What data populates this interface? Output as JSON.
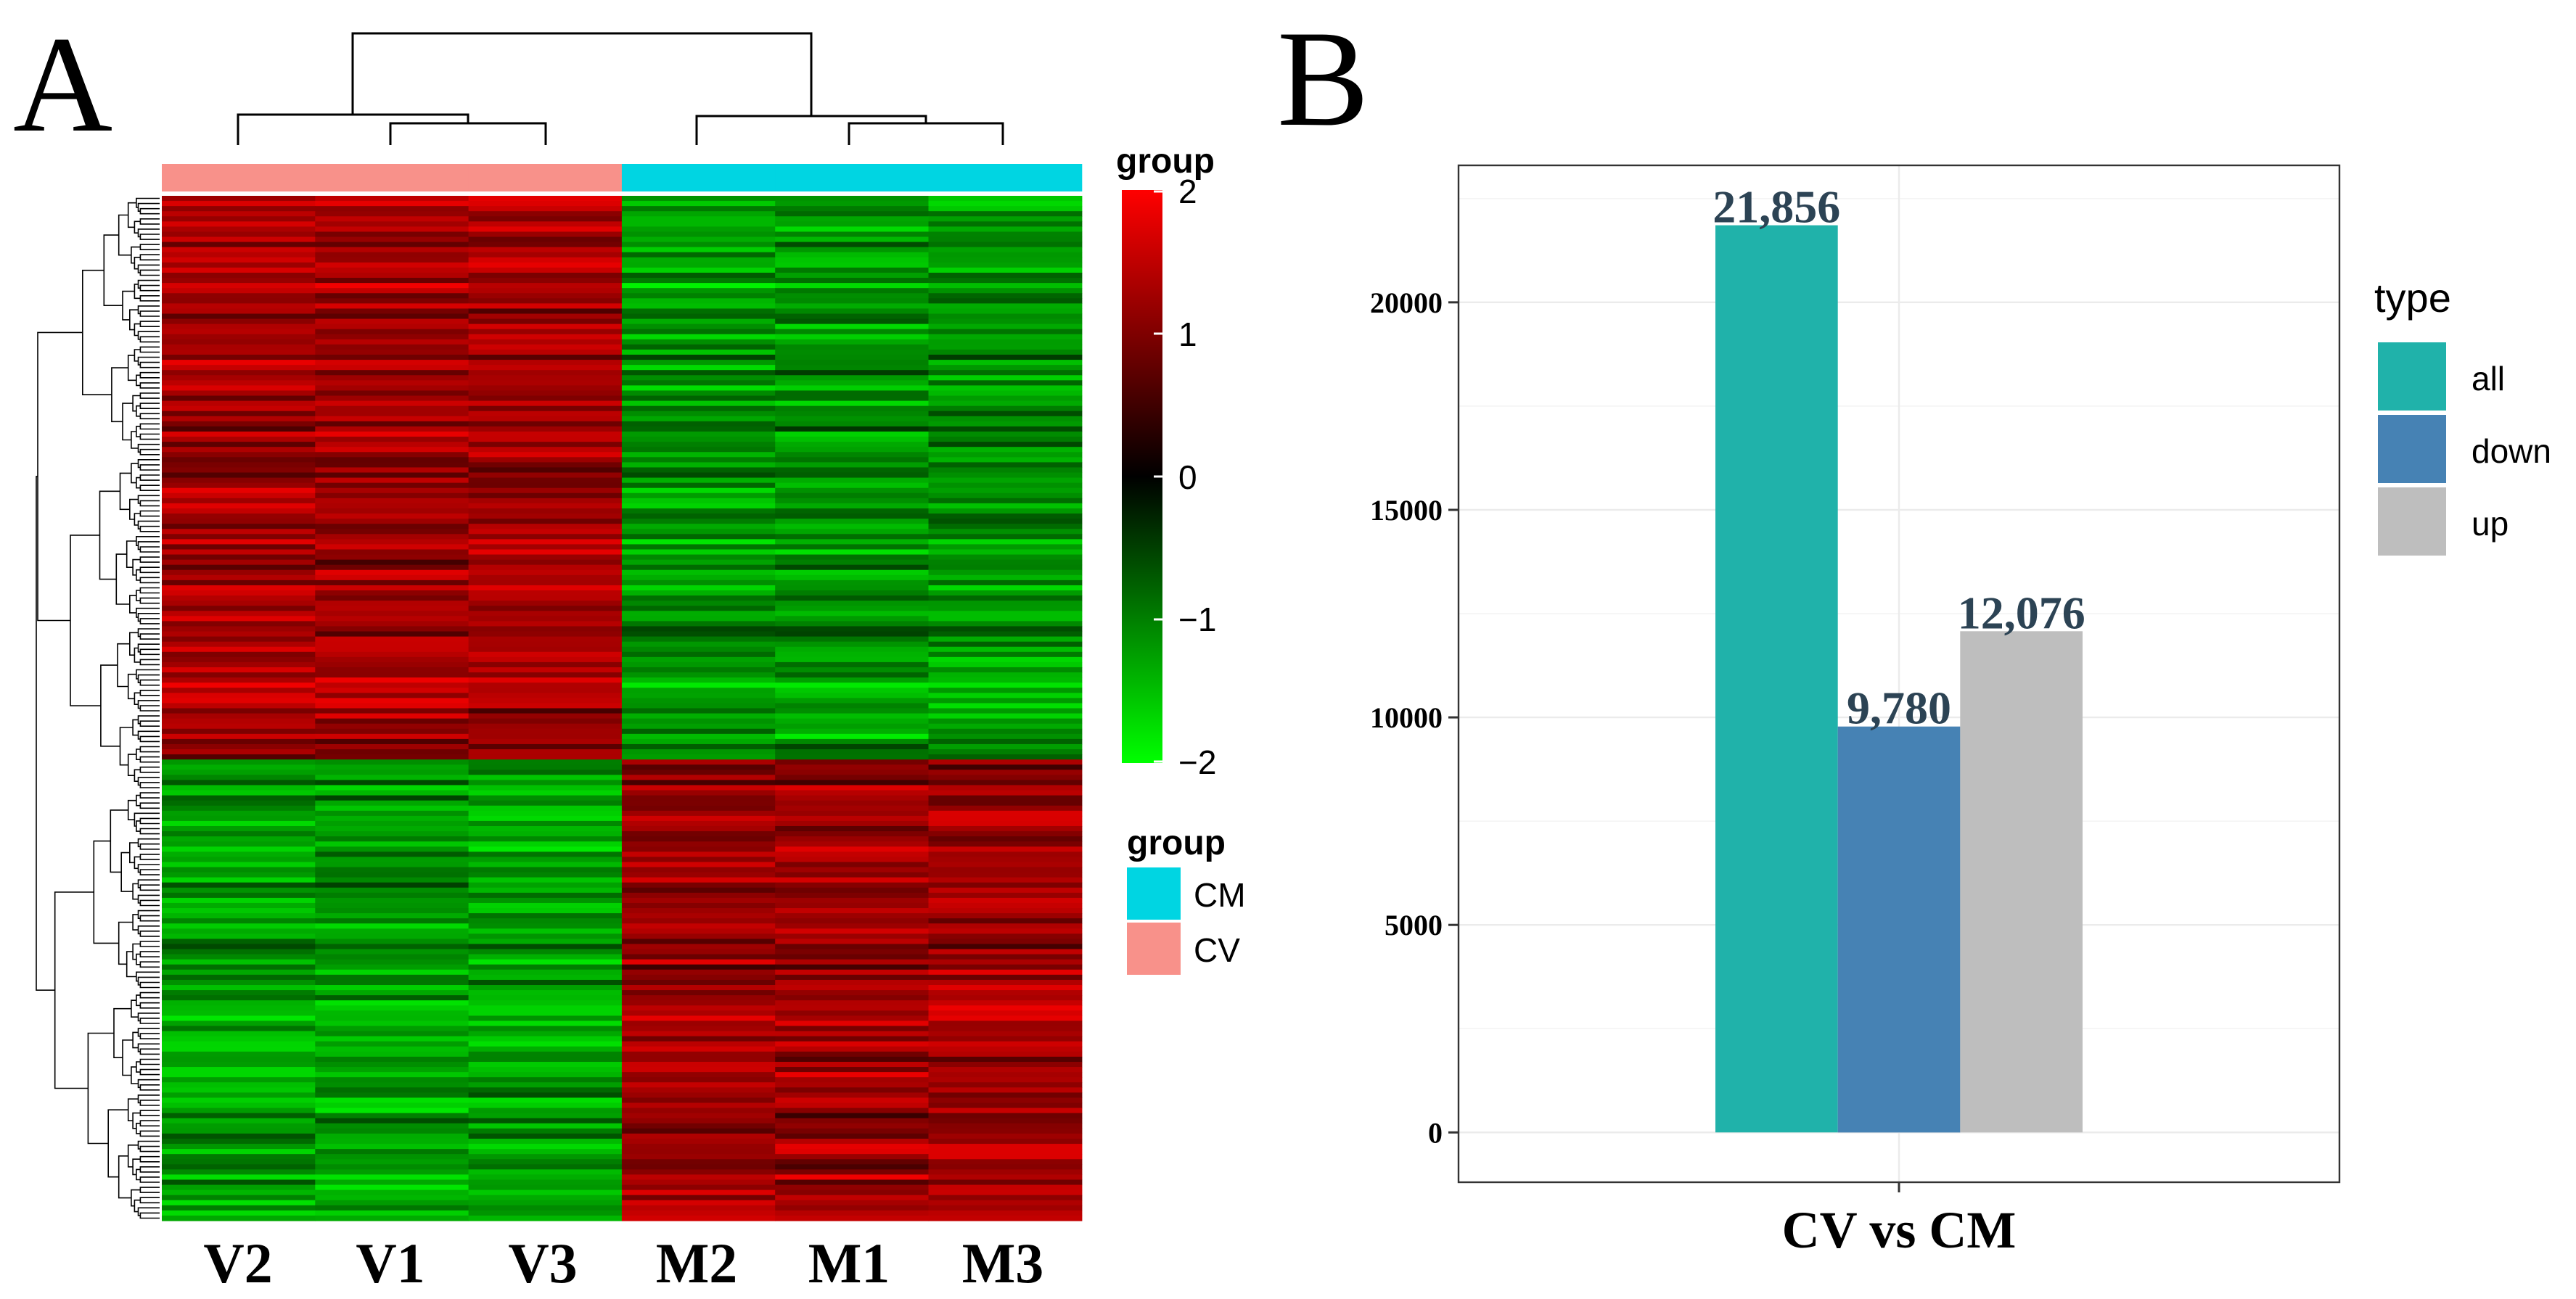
{
  "panels": {
    "a_letter": "A",
    "b_letter": "B"
  },
  "heatmap": {
    "type": "heatmap",
    "columns": [
      "V2",
      "V1",
      "V3",
      "M2",
      "M1",
      "M3"
    ],
    "column_groups": [
      "CV",
      "CV",
      "CV",
      "CM",
      "CM",
      "CM"
    ],
    "colorbar": {
      "title": "group",
      "ticks": [
        "2",
        "1",
        "0",
        "−1",
        "−2"
      ],
      "tick_values": [
        2,
        1,
        0,
        -1,
        -2
      ],
      "low_color": "#00ff00",
      "mid_color": "#000000",
      "high_color": "#ff0000"
    },
    "group_legend": {
      "title": "group",
      "items": [
        {
          "label": "CM",
          "color": "#00d5e2"
        },
        {
          "label": "CV",
          "color": "#f8918a"
        }
      ]
    },
    "row_blocks_description_values": {
      "upper_cluster_fraction": 0.55,
      "CV_upper_mean": 1.2,
      "CM_upper_mean": -1.1,
      "CV_lower_mean": -1.1,
      "CM_lower_mean": 1.1
    }
  },
  "chart_data": {
    "type": "bar",
    "categories": [
      "CV vs CM"
    ],
    "series": [
      {
        "name": "all",
        "values": [
          21856
        ],
        "label": "21,856",
        "color": "#20b2aa"
      },
      {
        "name": "down",
        "values": [
          9780
        ],
        "label": "9,780",
        "color": "#4682b4"
      },
      {
        "name": "up",
        "values": [
          12076
        ],
        "label": "12,076",
        "color": "#bebebe"
      }
    ],
    "ylim": [
      -1200,
      23300
    ],
    "yticks": [
      0,
      5000,
      10000,
      15000,
      20000
    ],
    "ytick_labels": [
      "0",
      "5000",
      "10000",
      "15000",
      "20000"
    ],
    "xlabel": "CV vs CM",
    "legend": {
      "title": "type",
      "position": "right"
    },
    "grid": true
  }
}
